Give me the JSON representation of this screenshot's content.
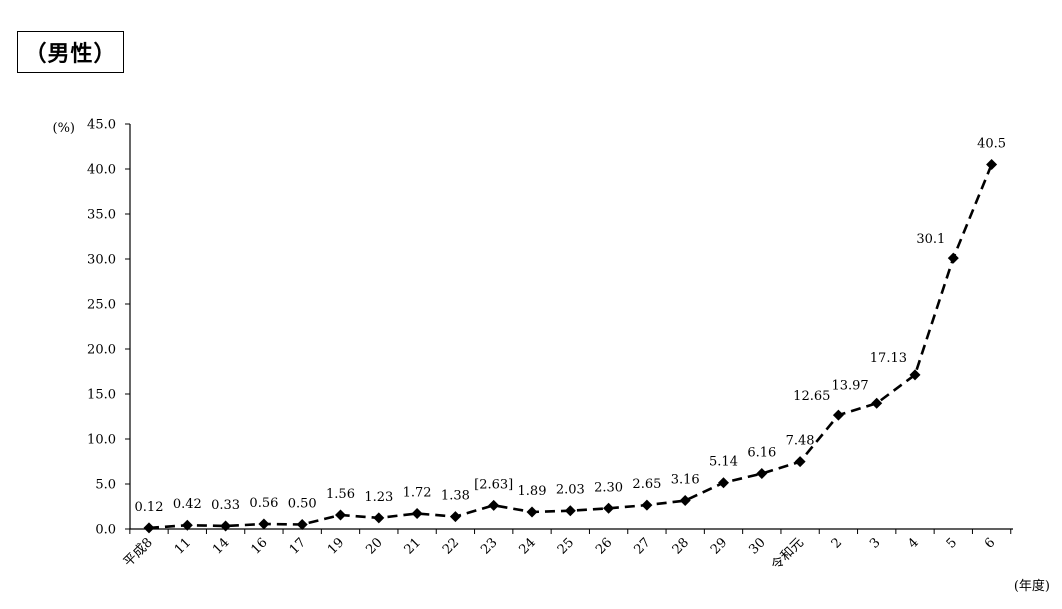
{
  "chart_data": {
    "type": "line",
    "title": "（男性）",
    "ylabel": "(%)",
    "xlabel": "(年度)",
    "ylim": [
      0,
      45
    ],
    "yticks": [
      "0.0",
      "5.0",
      "10.0",
      "15.0",
      "20.0",
      "25.0",
      "30.0",
      "35.0",
      "40.0",
      "45.0"
    ],
    "categories": [
      "平成8",
      "11",
      "14",
      "16",
      "17",
      "19",
      "20",
      "21",
      "22",
      "23",
      "24",
      "25",
      "26",
      "27",
      "28",
      "29",
      "30",
      "令和元",
      "2",
      "3",
      "4",
      "5",
      "6"
    ],
    "values": [
      0.12,
      0.42,
      0.33,
      0.56,
      0.5,
      1.56,
      1.23,
      1.72,
      1.38,
      2.63,
      1.89,
      2.03,
      2.3,
      2.65,
      3.16,
      5.14,
      6.16,
      7.48,
      12.65,
      13.97,
      17.13,
      30.1,
      40.5
    ],
    "data_labels": [
      "0.12",
      "0.42",
      "0.33",
      "0.56",
      "0.50",
      "1.56",
      "1.23",
      "1.72",
      "1.38",
      "[2.63]",
      "1.89",
      "2.03",
      "2.30",
      "2.65",
      "3.16",
      "5.14",
      "6.16",
      "7.48",
      "12.65",
      "13.97",
      "17.13",
      "30.1",
      "40.5"
    ],
    "line_style": "dashed",
    "marker": "diamond",
    "color": "#000000",
    "grid": false,
    "legend": "none"
  }
}
